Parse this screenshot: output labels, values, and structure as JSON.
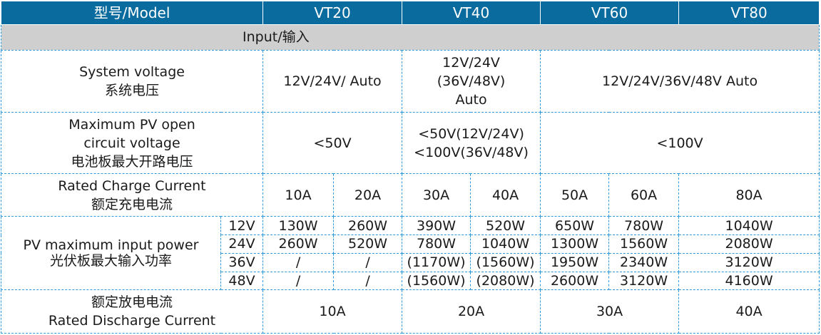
{
  "header": {
    "model": "型号/Model",
    "models": [
      "VT20",
      "VT40",
      "VT60",
      "VT80"
    ]
  },
  "section": {
    "input": "Input/输入"
  },
  "system_voltage": {
    "label_en": "System voltage",
    "label_zh": "系统电压",
    "vt20": "12V/24V/ Auto",
    "vt40": [
      "12V/24V",
      "(36V/48V)",
      "Auto"
    ],
    "vt60_80": "12V/24V/36V/48V Auto"
  },
  "pv_open_circuit": {
    "label_en_1": "Maximum PV open",
    "label_en_2": "circuit  voltage",
    "label_zh": "电池板最大开路电压",
    "vt20": "<50V",
    "vt40": [
      "<50V(12V/24V)",
      "<100V(36V/48V)"
    ],
    "vt60_80": "<100V"
  },
  "charge_current": {
    "label_en": "Rated Charge Current",
    "label_zh": "额定充电电流",
    "values": [
      "10A",
      "20A",
      "30A",
      "40A",
      "50A",
      "60A",
      "80A"
    ]
  },
  "pv_max_power": {
    "label_en": "PV maximum input power",
    "label_zh": "光伏板最大输入功率",
    "rows": [
      {
        "voltage": "12V",
        "values": [
          "130W",
          "260W",
          "390W",
          "520W",
          "650W",
          "780W",
          "1040W"
        ]
      },
      {
        "voltage": "24V",
        "values": [
          "260W",
          "520W",
          "780W",
          "1040W",
          "1300W",
          "1560W",
          "2080W"
        ]
      },
      {
        "voltage": "36V",
        "values": [
          "/",
          "/",
          "(1170W)",
          "(1560W)",
          "1950W",
          "2340W",
          "3120W"
        ]
      },
      {
        "voltage": "48V",
        "values": [
          "/",
          "/",
          "(1560W)",
          "(2080W)",
          "2600W",
          "3120W",
          "4160W"
        ]
      }
    ]
  },
  "discharge_current": {
    "label_zh": "额定放电电流",
    "label_en": "Rated Discharge Current",
    "values": [
      "10A",
      "20A",
      "30A",
      "40A"
    ]
  }
}
